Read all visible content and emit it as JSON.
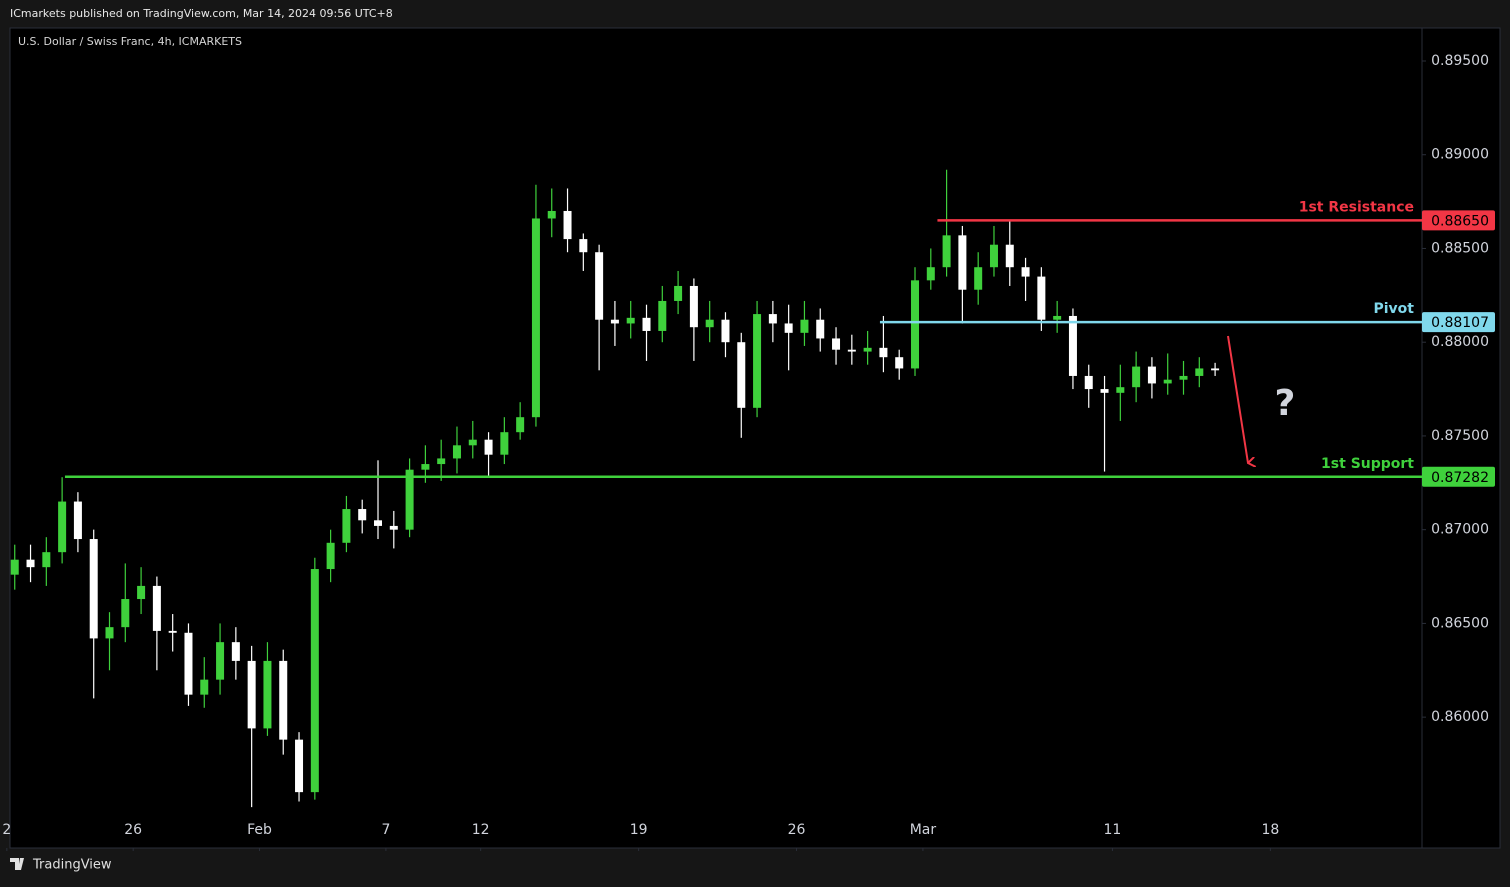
{
  "header": "ICmarkets published on TradingView.com, Mar 14, 2024 09:56 UTC+8",
  "footer": "TradingView",
  "chart_data": {
    "type": "candlestick",
    "title": "U.S. Dollar / Swiss Franc, 4h, ICMARKETS",
    "up_color": "#3fd13c",
    "down_color": "#ffffff",
    "x": [
      0.25,
      0.75,
      1.25,
      1.75,
      2.25,
      2.75,
      3.25,
      3.75,
      4.25,
      4.75,
      5.25,
      5.75,
      6.25,
      6.75,
      7.25,
      7.75,
      8.25,
      8.75,
      9.25,
      9.75,
      10.25,
      10.75,
      11.25,
      11.75,
      12.25,
      12.75,
      13.25,
      13.75,
      14.25,
      14.75,
      15.25,
      15.75,
      16.25,
      16.75,
      17.25,
      17.75,
      18.25,
      18.75,
      19.25,
      19.75,
      20.25,
      20.75,
      21.25,
      21.75,
      22.25,
      22.75,
      23.25,
      23.75,
      24.25,
      24.75,
      25.25,
      25.75,
      26.25,
      26.75,
      27.25,
      27.75,
      28.25,
      28.75,
      29.25,
      29.75,
      30.25,
      30.75,
      31.25,
      31.75,
      32.25,
      32.75,
      33.25,
      33.75,
      34.25,
      34.75,
      35.25,
      35.75,
      36.25,
      36.75,
      37.25,
      37.75,
      38.25
    ],
    "open": [
      0.8676,
      0.8684,
      0.868,
      0.8688,
      0.8715,
      0.8695,
      0.8642,
      0.8648,
      0.8663,
      0.867,
      0.8646,
      0.8645,
      0.8612,
      0.862,
      0.864,
      0.863,
      0.8594,
      0.863,
      0.8588,
      0.856,
      0.8679,
      0.8693,
      0.8711,
      0.8705,
      0.8702,
      0.87,
      0.8732,
      0.8735,
      0.8738,
      0.8745,
      0.8748,
      0.874,
      0.8752,
      0.876,
      0.8866,
      0.887,
      0.8855,
      0.8848,
      0.8812,
      0.881,
      0.8813,
      0.8806,
      0.8822,
      0.883,
      0.8808,
      0.8812,
      0.88,
      0.8765,
      0.8815,
      0.881,
      0.8805,
      0.8812,
      0.8802,
      0.8796,
      0.8795,
      0.8797,
      0.8792,
      0.8786,
      0.8833,
      0.884,
      0.8857,
      0.8828,
      0.884,
      0.8852,
      0.884,
      0.8835,
      0.8812,
      0.8814,
      0.8782,
      0.8775,
      0.8773,
      0.8776,
      0.8787,
      0.8778,
      0.878,
      0.8782,
      0.8786
    ],
    "high": [
      0.8692,
      0.8692,
      0.8696,
      0.8728,
      0.872,
      0.87,
      0.8656,
      0.8682,
      0.868,
      0.8675,
      0.8655,
      0.865,
      0.8632,
      0.865,
      0.8648,
      0.8638,
      0.864,
      0.8636,
      0.8592,
      0.8685,
      0.87,
      0.8718,
      0.8716,
      0.8737,
      0.871,
      0.8738,
      0.8745,
      0.8748,
      0.8755,
      0.8758,
      0.8752,
      0.876,
      0.8768,
      0.8884,
      0.8882,
      0.8882,
      0.8858,
      0.8852,
      0.8822,
      0.8822,
      0.882,
      0.883,
      0.8838,
      0.8834,
      0.8822,
      0.8816,
      0.8805,
      0.8822,
      0.8822,
      0.882,
      0.8822,
      0.8818,
      0.8808,
      0.8804,
      0.8806,
      0.8814,
      0.8796,
      0.884,
      0.885,
      0.8892,
      0.8862,
      0.8848,
      0.8862,
      0.8865,
      0.8845,
      0.884,
      0.8822,
      0.8818,
      0.8788,
      0.8782,
      0.8788,
      0.8795,
      0.8792,
      0.8794,
      0.879,
      0.8792,
      0.8789
    ],
    "low": [
      0.8668,
      0.8672,
      0.867,
      0.8682,
      0.8688,
      0.861,
      0.8625,
      0.864,
      0.8655,
      0.8625,
      0.8635,
      0.8606,
      0.8605,
      0.8612,
      0.862,
      0.8552,
      0.859,
      0.858,
      0.8555,
      0.8556,
      0.8672,
      0.8688,
      0.8698,
      0.8695,
      0.869,
      0.8696,
      0.8725,
      0.8726,
      0.873,
      0.8738,
      0.8728,
      0.8735,
      0.8748,
      0.8755,
      0.8856,
      0.8848,
      0.8838,
      0.8785,
      0.8798,
      0.8802,
      0.879,
      0.88,
      0.8815,
      0.879,
      0.88,
      0.8792,
      0.8749,
      0.876,
      0.88,
      0.8785,
      0.8798,
      0.8795,
      0.8788,
      0.8788,
      0.8788,
      0.8784,
      0.878,
      0.8782,
      0.8828,
      0.8835,
      0.881,
      0.882,
      0.8835,
      0.883,
      0.8822,
      0.8806,
      0.8805,
      0.8775,
      0.8765,
      0.8731,
      0.8758,
      0.8768,
      0.877,
      0.8772,
      0.8772,
      0.8776,
      0.8782
    ],
    "close": [
      0.8684,
      0.868,
      0.8688,
      0.8715,
      0.8695,
      0.8642,
      0.8648,
      0.8663,
      0.867,
      0.8646,
      0.8645,
      0.8612,
      0.862,
      0.864,
      0.863,
      0.8594,
      0.863,
      0.8588,
      0.856,
      0.8679,
      0.8693,
      0.8711,
      0.8705,
      0.8702,
      0.87,
      0.8732,
      0.8735,
      0.8738,
      0.8745,
      0.8748,
      0.874,
      0.8752,
      0.876,
      0.8866,
      0.887,
      0.8855,
      0.8848,
      0.8812,
      0.881,
      0.8813,
      0.8806,
      0.8822,
      0.883,
      0.8808,
      0.8812,
      0.88,
      0.8765,
      0.8815,
      0.881,
      0.8805,
      0.8812,
      0.8802,
      0.8796,
      0.8795,
      0.8797,
      0.8792,
      0.8786,
      0.8833,
      0.884,
      0.8857,
      0.8828,
      0.884,
      0.8852,
      0.884,
      0.8835,
      0.8812,
      0.8814,
      0.8782,
      0.8775,
      0.8773,
      0.8776,
      0.8787,
      0.8778,
      0.878,
      0.8782,
      0.8786,
      0.8785
    ],
    "xlim": [
      0.1,
      44.8
    ],
    "xticks": [
      {
        "value": 0,
        "label": "2"
      },
      {
        "value": 4,
        "label": "26"
      },
      {
        "value": 8,
        "label": "Feb"
      },
      {
        "value": 12,
        "label": "7"
      },
      {
        "value": 15,
        "label": "12"
      },
      {
        "value": 20,
        "label": "19"
      },
      {
        "value": 25,
        "label": "26"
      },
      {
        "value": 29,
        "label": "Mar"
      },
      {
        "value": 35,
        "label": "11"
      },
      {
        "value": 40,
        "label": "18"
      }
    ],
    "ylim": [
      0.85302,
      0.89676
    ],
    "yticks": [
      {
        "value": 0.86,
        "label": "0.86000"
      },
      {
        "value": 0.865,
        "label": "0.86500"
      },
      {
        "value": 0.87,
        "label": "0.87000"
      },
      {
        "value": 0.875,
        "label": "0.87500"
      },
      {
        "value": 0.88,
        "label": "0.88000"
      },
      {
        "value": 0.885,
        "label": "0.88500"
      },
      {
        "value": 0.89,
        "label": "0.89000"
      },
      {
        "value": 0.895,
        "label": "0.89500"
      }
    ],
    "levels": [
      {
        "name": "1st Resistance",
        "value": 0.8865,
        "label": "0.88650",
        "x_start": 29.46,
        "color": "#f23645"
      },
      {
        "name": "Pivot",
        "value": 0.88107,
        "label": "0.88107",
        "x_start": 27.64,
        "color": "#80d8ec"
      },
      {
        "name": "1st Support",
        "value": 0.87282,
        "label": "0.87282",
        "x_start": 1.84,
        "color": "#3fd13c"
      }
    ],
    "annotations": [
      "?"
    ]
  }
}
